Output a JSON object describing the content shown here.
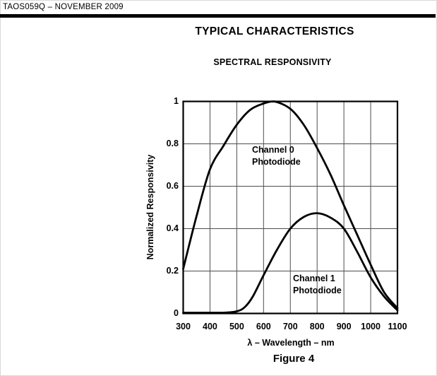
{
  "page": {
    "header": "TAOS059Q – NOVEMBER 2009",
    "section_title": "TYPICAL CHARACTERISTICS",
    "figure_caption": "Figure 4"
  },
  "chart_data": {
    "type": "line",
    "title": "SPECTRAL RESPONSIVITY",
    "xlabel": "λ – Wavelength – nm",
    "ylabel": "Normalized Responsivity",
    "xlim": [
      300,
      1100
    ],
    "ylim": [
      0,
      1
    ],
    "x_ticks": [
      300,
      400,
      500,
      600,
      700,
      800,
      900,
      1000,
      1100
    ],
    "y_ticks": [
      0,
      0.2,
      0.4,
      0.6,
      0.8,
      1
    ],
    "y_tick_labels": [
      "0",
      "0.2",
      "0.4",
      "0.6",
      "0.8",
      "1"
    ],
    "grid": true,
    "legend_position": "none",
    "line_color": "#000000",
    "grid_color": "#4d4d4d",
    "series": [
      {
        "name": "Channel 0 Photodiode",
        "x": [
          300,
          350,
          400,
          450,
          500,
          550,
          600,
          640,
          700,
          750,
          800,
          850,
          900,
          950,
          1000,
          1050,
          1100
        ],
        "y": [
          0.21,
          0.46,
          0.68,
          0.79,
          0.89,
          0.96,
          0.99,
          1.0,
          0.965,
          0.89,
          0.78,
          0.655,
          0.51,
          0.37,
          0.23,
          0.1,
          0.025
        ]
      },
      {
        "name": "Channel 1 Photodiode",
        "x": [
          300,
          350,
          400,
          450,
          500,
          530,
          560,
          600,
          650,
          700,
          750,
          800,
          850,
          900,
          950,
          1000,
          1050,
          1100
        ],
        "y": [
          0.002,
          0.002,
          0.002,
          0.003,
          0.01,
          0.03,
          0.08,
          0.18,
          0.3,
          0.4,
          0.455,
          0.473,
          0.452,
          0.4,
          0.29,
          0.17,
          0.08,
          0.015
        ]
      }
    ],
    "annotations": [
      {
        "lines": [
          "Channel 0",
          "Photodiode"
        ]
      },
      {
        "lines": [
          "Channel 1",
          "Photodiode"
        ]
      }
    ]
  }
}
